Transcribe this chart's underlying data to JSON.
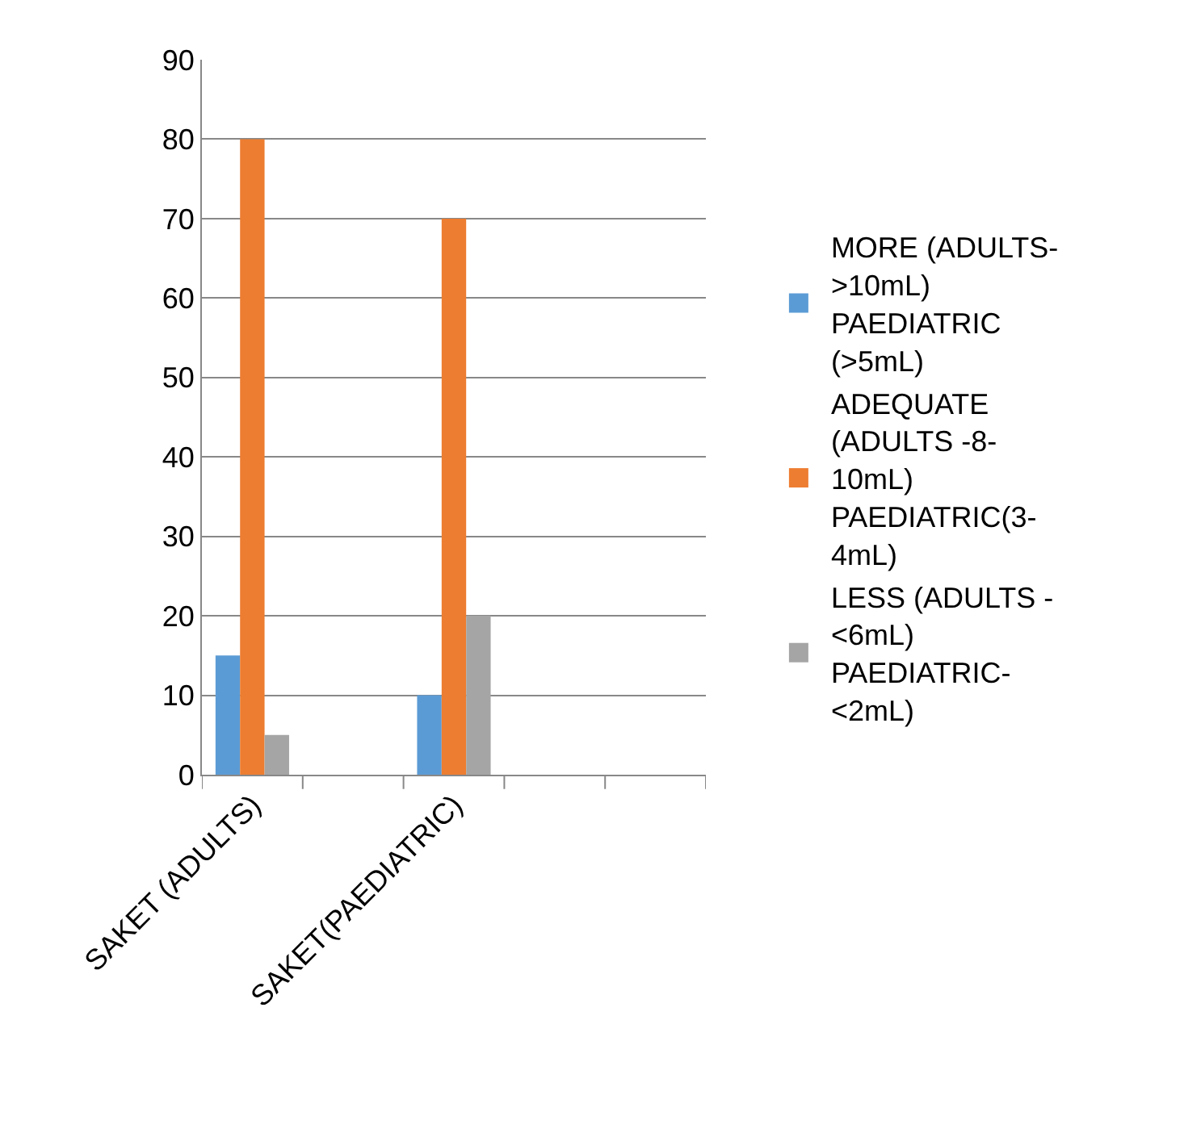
{
  "chart_data": {
    "type": "bar",
    "categories": [
      "SAKET (ADULTS)",
      null,
      "SAKET(PAEDIATRIC)",
      null,
      null
    ],
    "series": [
      {
        "name": "MORE (ADULTS->10mL)PAEDIATRIC (>5mL)",
        "color": "#5b9bd5",
        "values": [
          15,
          null,
          10,
          null,
          null
        ]
      },
      {
        "name": "ADEQUATE (ADULTS -8-10mL)PAEDIATRIC(3-4mL)",
        "color": "#ed7d31",
        "values": [
          80,
          null,
          70,
          null,
          null
        ]
      },
      {
        "name": "LESS (ADULTS -<6mL) PAEDIATRIC-<2mL)",
        "color": "#a5a5a5",
        "values": [
          5,
          null,
          20,
          null,
          null
        ]
      }
    ],
    "ylim": [
      0,
      90
    ],
    "yticks": [
      0,
      10,
      20,
      30,
      40,
      50,
      60,
      70,
      80,
      90
    ],
    "grid": "y",
    "legend": "right"
  }
}
